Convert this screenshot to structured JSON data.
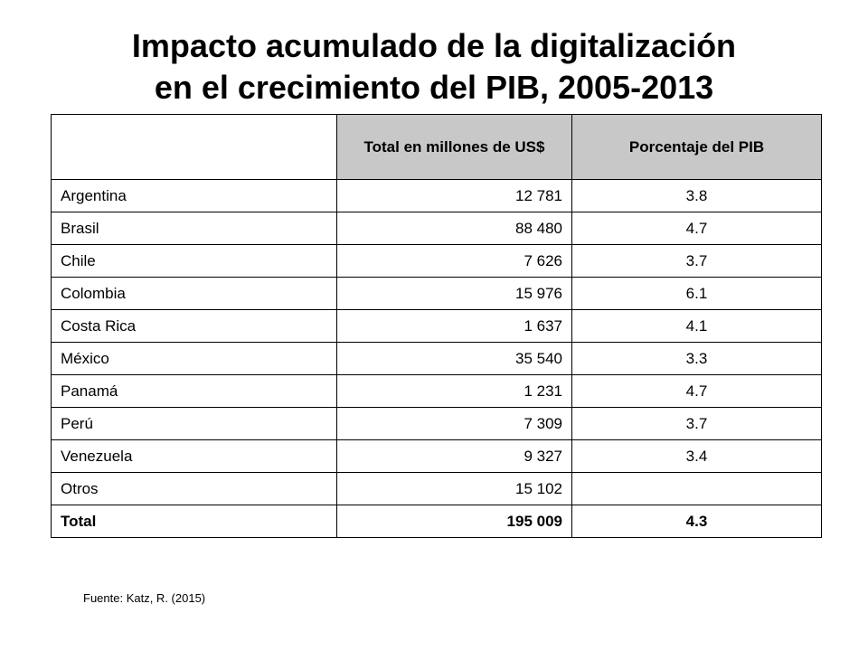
{
  "title": {
    "line1": "Impacto acumulado de la digitalización",
    "line2": "en el crecimiento del PIB, 2005-2013"
  },
  "table": {
    "headers": [
      "",
      "Total en millones de US$",
      "Porcentaje del PIB"
    ],
    "rows": [
      {
        "country": "Argentina",
        "total": "12 781",
        "pct": "3.8"
      },
      {
        "country": "Brasil",
        "total": "88 480",
        "pct": "4.7"
      },
      {
        "country": "Chile",
        "total": "7 626",
        "pct": "3.7"
      },
      {
        "country": "Colombia",
        "total": "15 976",
        "pct": "6.1"
      },
      {
        "country": "Costa Rica",
        "total": "1 637",
        "pct": "4.1"
      },
      {
        "country": "México",
        "total": "35 540",
        "pct": "3.3"
      },
      {
        "country": "Panamá",
        "total": "1 231",
        "pct": "4.7"
      },
      {
        "country": "Perú",
        "total": "7 309",
        "pct": "3.7"
      },
      {
        "country": "Venezuela",
        "total": "9 327",
        "pct": "3.4"
      },
      {
        "country": "Otros",
        "total": "15 102",
        "pct": ""
      }
    ],
    "total_row": {
      "country": "Total",
      "total": "195 009",
      "pct": "4.3"
    }
  },
  "source": "Fuente: Katz, R. (2015)"
}
